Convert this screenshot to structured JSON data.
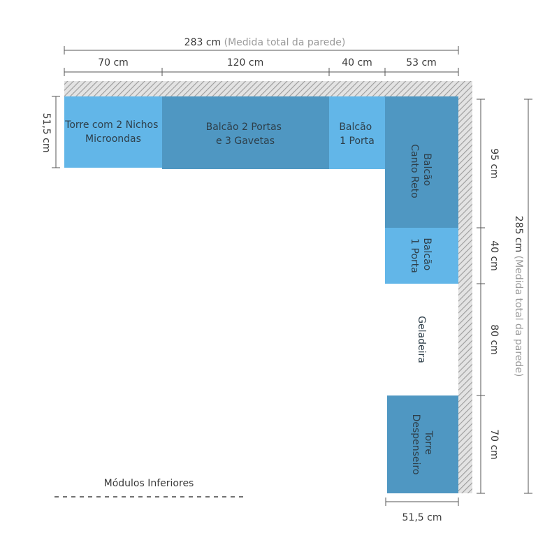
{
  "colors": {
    "light_module": "#62b6e8",
    "dark_module": "#4f97c2",
    "wall": "#bdbdbd",
    "dimension_line": "#555555"
  },
  "top_dims": {
    "total_value": "283 cm",
    "total_note": "(Medida total da parede)",
    "segments": [
      "70 cm",
      "120 cm",
      "40 cm",
      "53 cm"
    ]
  },
  "left_dim": "51,5 cm",
  "right_dims": {
    "total_value": "285 cm",
    "total_note": "(Medida total da parede)",
    "segments": [
      "95 cm",
      "40 cm",
      "80 cm",
      "70 cm"
    ]
  },
  "bottom_dim": "51,5 cm",
  "modules": {
    "torre_nichos": [
      "Torre com 2 Nichos",
      "Microondas"
    ],
    "balcao_portas_gavetas": [
      "Balcão 2 Portas",
      "e 3 Gavetas"
    ],
    "balcao_1_porta_top": [
      "Balcão",
      "1 Porta"
    ],
    "balcao_canto_reto": [
      "Balcão",
      "Canto Reto"
    ],
    "balcao_1_porta_side": [
      "Balcão",
      "1 Porta"
    ],
    "geladeira": "Geladeira",
    "torre_despenseiro": [
      "Torre",
      "Despenseiro"
    ]
  },
  "legend": "Módulos Inferiores"
}
